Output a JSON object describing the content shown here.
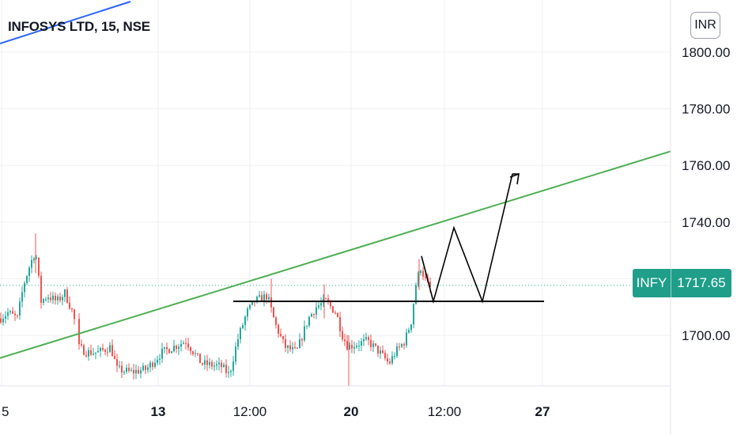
{
  "header": {
    "title": "INFOSYS LTD, 15, NSE",
    "currency": "INR"
  },
  "last_price": {
    "symbol": "INFY",
    "value": "1717.65"
  },
  "colors": {
    "up": "#26a69a",
    "down": "#ef5350",
    "trendline": "#4caf50",
    "topline": "#2962ff",
    "price_line": "#22ab94",
    "drawing": "#000000",
    "grid": "#eef0f3"
  },
  "chart_data": {
    "type": "candlestick",
    "title": "INFOSYS LTD, 15, NSE",
    "currency": "INR",
    "y_ticks": [
      1700,
      1720,
      1740,
      1760,
      1780,
      1800
    ],
    "y_tick_labels": [
      "1700.00",
      "1720.00",
      "1740.00",
      "1760.00",
      "1780.00",
      "1800.00"
    ],
    "y_visible_range": [
      1680,
      1820
    ],
    "x_ticks": [
      {
        "label": "5",
        "bold": false
      },
      {
        "label": "13",
        "bold": true
      },
      {
        "label": "12:00",
        "bold": false
      },
      {
        "label": "20",
        "bold": true
      },
      {
        "label": "12:00",
        "bold": false
      },
      {
        "label": "27",
        "bold": true
      }
    ],
    "last_price": 1717.65,
    "price_series_lows_highs": [
      {
        "segment": "early",
        "low": 1703,
        "high": 1735
      },
      {
        "segment": "dip",
        "low": 1683,
        "high": 1700
      },
      {
        "segment": "recovery",
        "low": 1687,
        "high": 1720
      },
      {
        "segment": "mid",
        "low": 1683,
        "high": 1718
      },
      {
        "segment": "late",
        "low": 1689,
        "high": 1727
      }
    ],
    "support_level": 1712,
    "trendline": {
      "start_price": 1692,
      "end_price": 1765
    },
    "projected_path": [
      1728,
      1712,
      1738,
      1712,
      1757
    ]
  }
}
